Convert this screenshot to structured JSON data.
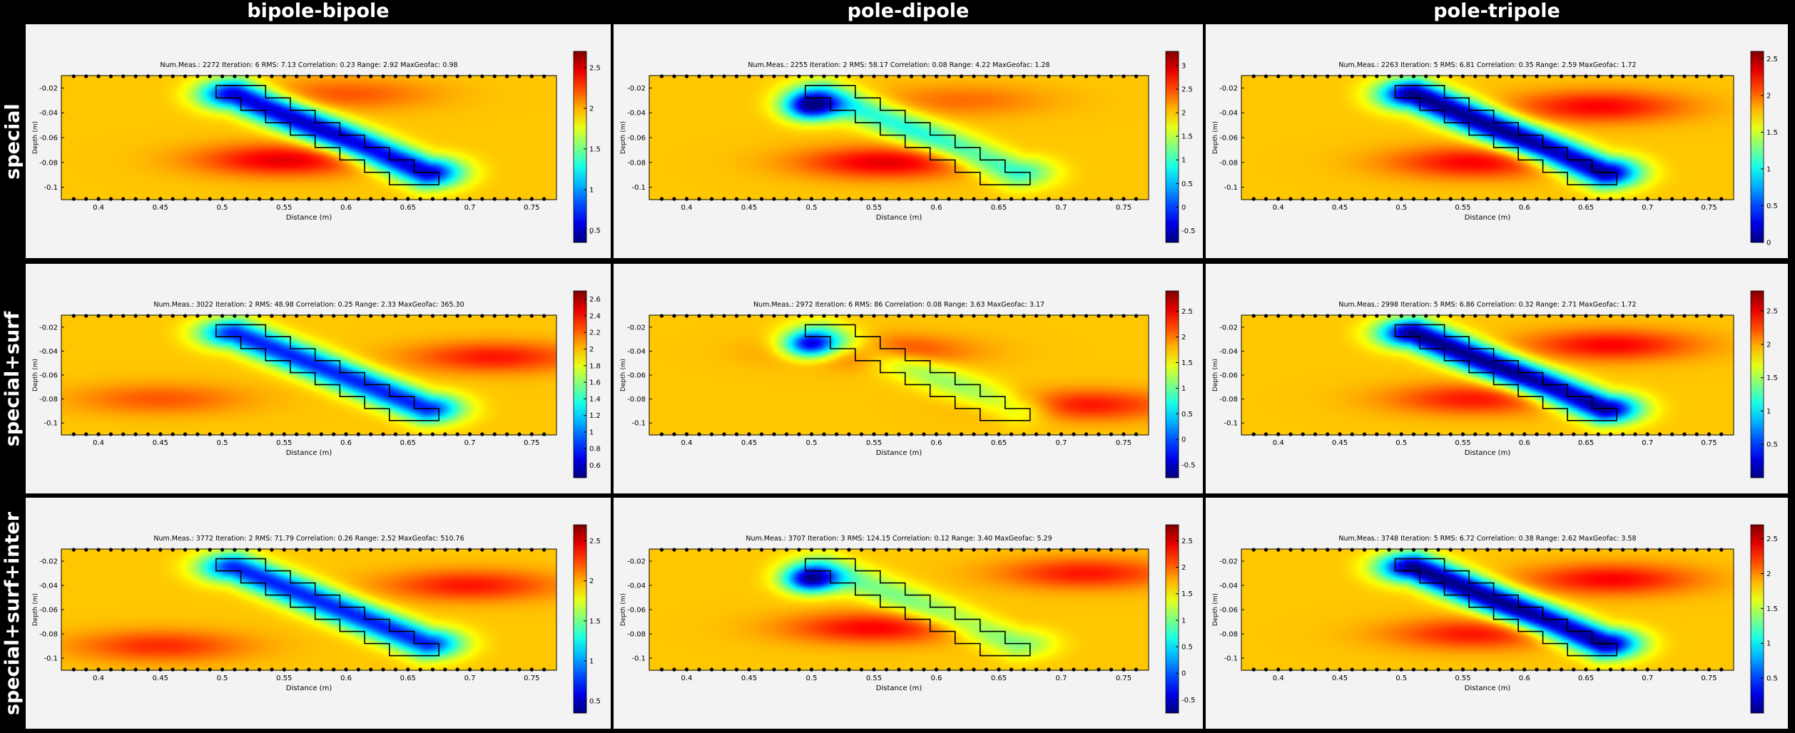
{
  "columns": [
    "bipole-bipole",
    "pole-dipole",
    "pole-tripole"
  ],
  "rows": [
    "special",
    "special+surf",
    "special+surf+inter"
  ],
  "chart_data": [
    {
      "type": "heatmap",
      "row": 0,
      "col": 0,
      "stats": "Num.Meas.: 2272    Iteration: 6    RMS: 7.13    Correlation: 0.23    Range: 2.92    MaxGeofac: 0.98",
      "xlabel": "Distance (m)",
      "ylabel": "Depth (m)",
      "xticks": [
        "0.4",
        "0.45",
        "0.5",
        "0.55",
        "0.6",
        "0.65",
        "0.7",
        "0.75"
      ],
      "yticks": [
        "-0.02",
        "-0.04",
        "-0.06",
        "-0.08",
        "-0.1"
      ],
      "colorbar_ticks": [
        "2.5",
        "2",
        "1.5",
        "1",
        "0.5",
        "-"
      ],
      "colorbar_range": [
        0.35,
        2.7
      ],
      "xlim": [
        0.37,
        0.77
      ],
      "ylim": [
        -0.11,
        -0.01
      ],
      "low_anomaly_strength": 1.0,
      "high_bands": [
        [
          0.55,
          -0.078,
          1.0
        ],
        [
          0.6,
          -0.025,
          0.5
        ]
      ]
    },
    {
      "type": "heatmap",
      "row": 0,
      "col": 1,
      "stats": "Num.Meas.: 2255    Iteration: 2    RMS: 58.17    Correlation: 0.08    Range: 4.22    MaxGeofac: 1.28",
      "xlabel": "Distance (m)",
      "ylabel": "Depth (m)",
      "xticks": [
        "0.4",
        "0.45",
        "0.5",
        "0.55",
        "0.6",
        "0.65",
        "0.7",
        "0.75"
      ],
      "yticks": [
        "-0.02",
        "-0.04",
        "-0.06",
        "-0.08",
        "-0.1"
      ],
      "colorbar_ticks": [
        "3",
        "2.5",
        "2",
        "1.5",
        "1",
        "0.5",
        "0",
        "-0.5"
      ],
      "colorbar_range": [
        -0.75,
        3.3
      ],
      "xlim": [
        0.37,
        0.77
      ],
      "ylim": [
        -0.11,
        -0.01
      ],
      "low_anomaly_strength": 0.45,
      "high_bands": [
        [
          0.56,
          -0.08,
          1.0
        ],
        [
          0.62,
          -0.03,
          0.4
        ]
      ]
    },
    {
      "type": "heatmap",
      "row": 0,
      "col": 2,
      "stats": "Num.Meas.: 2263    Iteration: 5    RMS: 6.81    Correlation: 0.35    Range: 2.59    MaxGeofac: 1.72",
      "xlabel": "Distance (m)",
      "ylabel": "Depth (m)",
      "xticks": [
        "0.4",
        "0.45",
        "0.5",
        "0.55",
        "0.6",
        "0.65",
        "0.7",
        "0.75"
      ],
      "yticks": [
        "-0.02",
        "-0.04",
        "-0.06",
        "-0.08",
        "-0.1"
      ],
      "colorbar_ticks": [
        "2.5",
        "2",
        "1.5",
        "1",
        "0.5",
        "0"
      ],
      "colorbar_range": [
        0,
        2.6
      ],
      "xlim": [
        0.37,
        0.77
      ],
      "ylim": [
        -0.11,
        -0.01
      ],
      "low_anomaly_strength": 1.1,
      "high_bands": [
        [
          0.56,
          -0.08,
          0.9
        ],
        [
          0.66,
          -0.035,
          0.9
        ]
      ]
    },
    {
      "type": "heatmap",
      "row": 1,
      "col": 0,
      "stats": "Num.Meas.: 3022    Iteration: 2    RMS: 48.98    Correlation: 0.25    Range: 2.33    MaxGeofac: 365.30",
      "xlabel": "Distance (m)",
      "ylabel": "Depth (m)",
      "xticks": [
        "0.4",
        "0.45",
        "0.5",
        "0.55",
        "0.6",
        "0.65",
        "0.7",
        "0.75"
      ],
      "yticks": [
        "-0.02",
        "-0.04",
        "-0.06",
        "-0.08",
        "-0.1"
      ],
      "colorbar_ticks": [
        "2.6",
        "2.4",
        "2.2",
        "2",
        "1.8",
        "1.6",
        "1.4",
        "1.2",
        "1",
        "0.8",
        "0.6"
      ],
      "colorbar_range": [
        0.45,
        2.7
      ],
      "xlim": [
        0.37,
        0.77
      ],
      "ylim": [
        -0.11,
        -0.01
      ],
      "low_anomaly_strength": 0.85,
      "high_bands": [
        [
          0.72,
          -0.045,
          0.8
        ],
        [
          0.45,
          -0.08,
          0.5
        ]
      ]
    },
    {
      "type": "heatmap",
      "row": 1,
      "col": 1,
      "stats": "Num.Meas.: 2972    Iteration: 6    RMS: 86    Correlation: 0.08    Range: 3.63    MaxGeofac: 3.17",
      "xlabel": "Distance (m)",
      "ylabel": "Depth (m)",
      "xticks": [
        "0.4",
        "0.45",
        "0.5",
        "0.55",
        "0.6",
        "0.65",
        "0.7",
        "0.75"
      ],
      "yticks": [
        "-0.02",
        "-0.04",
        "-0.06",
        "-0.08",
        "-0.1"
      ],
      "colorbar_ticks": [
        "2.5",
        "2",
        "1.5",
        "1",
        "0.5",
        "0",
        "-0.5"
      ],
      "colorbar_range": [
        -0.75,
        2.9
      ],
      "xlim": [
        0.37,
        0.77
      ],
      "ylim": [
        -0.11,
        -0.01
      ],
      "low_anomaly_strength": 0.25,
      "high_bands": [
        [
          0.55,
          -0.04,
          0.8
        ],
        [
          0.72,
          -0.085,
          0.8
        ]
      ]
    },
    {
      "type": "heatmap",
      "row": 1,
      "col": 2,
      "stats": "Num.Meas.: 2998    Iteration: 5    RMS: 6.86    Correlation: 0.32    Range: 2.71    MaxGeofac: 1.72",
      "xlabel": "Distance (m)",
      "ylabel": "Depth (m)",
      "xticks": [
        "0.4",
        "0.45",
        "0.5",
        "0.55",
        "0.6",
        "0.65",
        "0.7",
        "0.75"
      ],
      "yticks": [
        "-0.02",
        "-0.04",
        "-0.06",
        "-0.08",
        "-0.1"
      ],
      "colorbar_ticks": [
        "2.5",
        "2",
        "1.5",
        "1",
        "0.5"
      ],
      "colorbar_range": [
        0,
        2.8
      ],
      "xlim": [
        0.37,
        0.77
      ],
      "ylim": [
        -0.11,
        -0.01
      ],
      "low_anomaly_strength": 1.1,
      "high_bands": [
        [
          0.56,
          -0.08,
          0.8
        ],
        [
          0.67,
          -0.035,
          0.9
        ]
      ]
    },
    {
      "type": "heatmap",
      "row": 2,
      "col": 0,
      "stats": "Num.Meas.: 3772    Iteration: 2    RMS: 71.79    Correlation: 0.26    Range: 2.52    MaxGeofac: 510.76",
      "xlabel": "Distance (m)",
      "ylabel": "Depth (m)",
      "xticks": [
        "0.4",
        "0.45",
        "0.5",
        "0.55",
        "0.6",
        "0.65",
        "0.7",
        "0.75"
      ],
      "yticks": [
        "-0.02",
        "-0.04",
        "-0.06",
        "-0.08",
        "-0.1"
      ],
      "colorbar_ticks": [
        "2.5",
        "2",
        "1.5",
        "1",
        "0.5"
      ],
      "colorbar_range": [
        0.35,
        2.7
      ],
      "xlim": [
        0.37,
        0.77
      ],
      "ylim": [
        -0.11,
        -0.01
      ],
      "low_anomaly_strength": 0.85,
      "high_bands": [
        [
          0.7,
          -0.04,
          0.8
        ],
        [
          0.45,
          -0.09,
          0.7
        ]
      ]
    },
    {
      "type": "heatmap",
      "row": 2,
      "col": 1,
      "stats": "Num.Meas.: 3707    Iteration: 3    RMS: 124.15    Correlation: 0.12    Range: 3.40    MaxGeofac: 5.29",
      "xlabel": "Distance (m)",
      "ylabel": "Depth (m)",
      "xticks": [
        "0.4",
        "0.45",
        "0.5",
        "0.55",
        "0.6",
        "0.65",
        "0.7",
        "0.75"
      ],
      "yticks": [
        "-0.02",
        "-0.04",
        "-0.06",
        "-0.08",
        "-0.1"
      ],
      "colorbar_ticks": [
        "2.5",
        "2",
        "1.5",
        "1",
        "0.5",
        "0",
        "-0.5"
      ],
      "colorbar_range": [
        -0.75,
        2.8
      ],
      "xlim": [
        0.37,
        0.77
      ],
      "ylim": [
        -0.11,
        -0.01
      ],
      "low_anomaly_strength": 0.3,
      "high_bands": [
        [
          0.55,
          -0.075,
          0.9
        ],
        [
          0.72,
          -0.03,
          0.8
        ]
      ]
    },
    {
      "type": "heatmap",
      "row": 2,
      "col": 2,
      "stats": "Num.Meas.: 3748    Iteration: 5    RMS: 6.72    Correlation: 0.38    Range: 2.62    MaxGeofac: 3.58",
      "xlabel": "Distance (m)",
      "ylabel": "Depth (m)",
      "xticks": [
        "0.4",
        "0.45",
        "0.5",
        "0.55",
        "0.6",
        "0.65",
        "0.7",
        "0.75"
      ],
      "yticks": [
        "-0.02",
        "-0.04",
        "-0.06",
        "-0.08",
        "-0.1"
      ],
      "colorbar_ticks": [
        "2.5",
        "2",
        "1.5",
        "1",
        "0.5"
      ],
      "colorbar_range": [
        0,
        2.7
      ],
      "xlim": [
        0.37,
        0.77
      ],
      "ylim": [
        -0.11,
        -0.01
      ],
      "low_anomaly_strength": 1.1,
      "high_bands": [
        [
          0.56,
          -0.08,
          0.8
        ],
        [
          0.67,
          -0.035,
          0.9
        ]
      ]
    }
  ],
  "anomaly_outline_steps": [
    [
      0.495,
      -0.018
    ],
    [
      0.535,
      -0.018
    ],
    [
      0.535,
      -0.028
    ],
    [
      0.555,
      -0.028
    ],
    [
      0.555,
      -0.038
    ],
    [
      0.575,
      -0.038
    ],
    [
      0.575,
      -0.048
    ],
    [
      0.595,
      -0.048
    ],
    [
      0.595,
      -0.058
    ],
    [
      0.615,
      -0.058
    ],
    [
      0.615,
      -0.068
    ],
    [
      0.635,
      -0.068
    ],
    [
      0.635,
      -0.078
    ],
    [
      0.655,
      -0.078
    ],
    [
      0.655,
      -0.088
    ],
    [
      0.675,
      -0.088
    ],
    [
      0.675,
      -0.098
    ],
    [
      0.635,
      -0.098
    ],
    [
      0.635,
      -0.088
    ],
    [
      0.615,
      -0.088
    ],
    [
      0.615,
      -0.078
    ],
    [
      0.595,
      -0.078
    ],
    [
      0.595,
      -0.068
    ],
    [
      0.575,
      -0.068
    ],
    [
      0.575,
      -0.058
    ],
    [
      0.555,
      -0.058
    ],
    [
      0.555,
      -0.048
    ],
    [
      0.535,
      -0.048
    ],
    [
      0.535,
      -0.038
    ],
    [
      0.515,
      -0.038
    ],
    [
      0.515,
      -0.028
    ],
    [
      0.495,
      -0.028
    ]
  ],
  "electrode_x": [
    0.38,
    0.39,
    0.4,
    0.41,
    0.42,
    0.43,
    0.44,
    0.45,
    0.46,
    0.47,
    0.48,
    0.49,
    0.5,
    0.51,
    0.52,
    0.53,
    0.54,
    0.55,
    0.56,
    0.57,
    0.58,
    0.59,
    0.6,
    0.61,
    0.62,
    0.63,
    0.64,
    0.65,
    0.66,
    0.67,
    0.68,
    0.69,
    0.7,
    0.71,
    0.72,
    0.73,
    0.74,
    0.75,
    0.76
  ]
}
